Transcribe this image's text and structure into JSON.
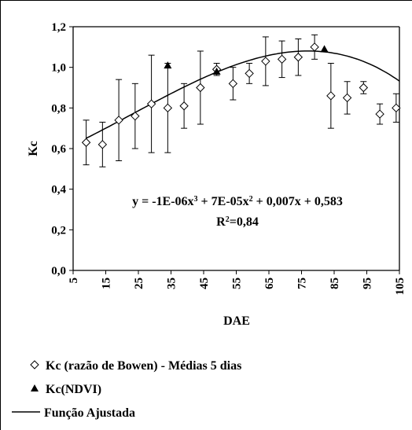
{
  "chart_data": {
    "type": "scatter",
    "xlabel": "DAE",
    "ylabel": "Kc",
    "xlim": [
      5,
      105
    ],
    "ylim": [
      0,
      1.2
    ],
    "x_ticks": [
      "5",
      "15",
      "25",
      "35",
      "45",
      "55",
      "65",
      "75",
      "85",
      "95",
      "105"
    ],
    "y_ticks": [
      "0,0",
      "0,2",
      "0,4",
      "0,6",
      "0,8",
      "1,0",
      "1,2"
    ],
    "series": [
      {
        "name": "Kc (razão de Bowen) - Médias 5 dias",
        "marker": "diamond-open",
        "x": [
          9,
          14,
          19,
          24,
          29,
          34,
          39,
          44,
          49,
          54,
          59,
          64,
          69,
          74,
          79,
          84,
          89,
          94,
          99,
          104
        ],
        "y": [
          0.63,
          0.62,
          0.74,
          0.76,
          0.82,
          0.8,
          0.81,
          0.9,
          0.99,
          0.92,
          0.97,
          1.03,
          1.04,
          1.05,
          1.1,
          0.86,
          0.85,
          0.9,
          0.77,
          0.8
        ],
        "err": [
          0.11,
          0.11,
          0.2,
          0.16,
          0.24,
          0.22,
          0.11,
          0.18,
          0.03,
          0.08,
          0.05,
          0.12,
          0.09,
          0.09,
          0.06,
          0.16,
          0.08,
          0.03,
          0.05,
          0.07
        ]
      },
      {
        "name": "Kc(NDVI)",
        "marker": "triangle-filled",
        "x": [
          34,
          49,
          82
        ],
        "y": [
          1.01,
          0.98,
          1.09
        ]
      },
      {
        "name": "Função Ajustada",
        "type": "line",
        "equation": "y = -1E-06x³ + 7E-05x² + 0,007x + 0,583",
        "coefficients": {
          "a3": -1e-06,
          "a2": 7e-05,
          "a1": 0.007,
          "a0": 0.583
        }
      }
    ],
    "annotation": {
      "eq_parts": [
        "y = -1E-06x",
        "3",
        " + 7E-05x",
        "2",
        " + 0,007x + 0,583"
      ],
      "r2_parts": [
        "R",
        "2",
        "=0,84"
      ]
    },
    "legend": {
      "placement": "bottom",
      "items": [
        "Kc (razão de Bowen) - Médias 5 dias",
        "Kc(NDVI)",
        "Função Ajustada"
      ]
    },
    "grid": false,
    "colors": {
      "markers": "#000000",
      "line": "#000000",
      "background": "#ffffff"
    }
  }
}
